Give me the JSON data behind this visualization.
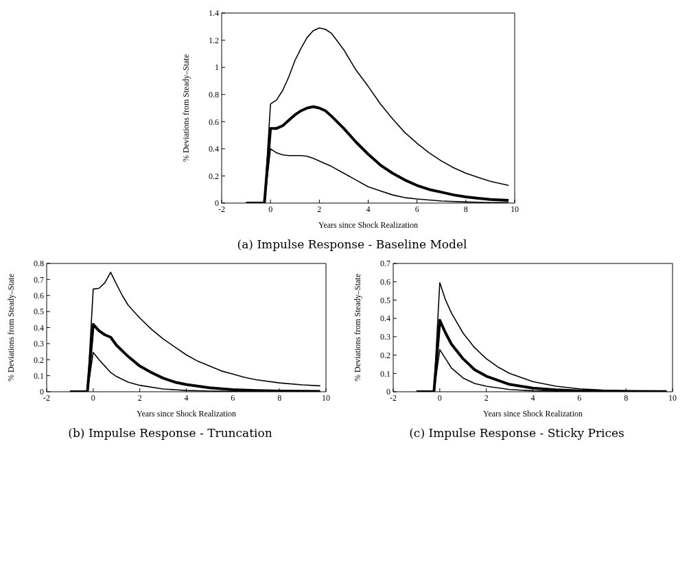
{
  "chart_data": [
    {
      "type": "line",
      "title": "(a) Impulse Response - Baseline Model",
      "xlabel": "Years since Shock Realization",
      "ylabel": "% Deviations from Steady–State",
      "xlim": [
        -2,
        10
      ],
      "xticks": [
        -2,
        0,
        2,
        4,
        6,
        8,
        10
      ],
      "ylim": [
        0,
        1.4
      ],
      "yticks": [
        0,
        0.2,
        0.4,
        0.6,
        0.8,
        1,
        1.2,
        1.4
      ],
      "marker": "none",
      "line_style": "solid",
      "series": [
        {
          "color": "#000000",
          "x": [
            -1,
            -0.25,
            0,
            0.25,
            0.5,
            0.75,
            1,
            1.25,
            1.5,
            1.75,
            2,
            2.25,
            2.5,
            2.75,
            3,
            3.5,
            4,
            4.5,
            5,
            5.5,
            6,
            6.5,
            7,
            7.5,
            8,
            8.5,
            9,
            9.75
          ],
          "values": [
            0,
            0,
            0.73,
            0.76,
            0.83,
            0.93,
            1.05,
            1.14,
            1.22,
            1.27,
            1.29,
            1.28,
            1.25,
            1.19,
            1.13,
            0.98,
            0.86,
            0.73,
            0.62,
            0.52,
            0.44,
            0.37,
            0.31,
            0.26,
            0.22,
            0.19,
            0.16,
            0.13
          ]
        },
        {
          "color": "#000000",
          "x": [
            -1,
            -0.25,
            0,
            0.25,
            0.5,
            0.75,
            1,
            1.25,
            1.5,
            1.75,
            2,
            2.25,
            2.5,
            3,
            3.5,
            4,
            4.5,
            5,
            5.5,
            6,
            6.5,
            7,
            7.5,
            8,
            8.5,
            9,
            9.75
          ],
          "values": [
            0,
            0,
            0.55,
            0.55,
            0.57,
            0.61,
            0.65,
            0.68,
            0.7,
            0.71,
            0.7,
            0.68,
            0.64,
            0.55,
            0.45,
            0.36,
            0.28,
            0.22,
            0.17,
            0.13,
            0.1,
            0.08,
            0.06,
            0.045,
            0.035,
            0.027,
            0.02
          ]
        },
        {
          "color": "#000000",
          "x": [
            -1,
            -0.25,
            0,
            0.25,
            0.5,
            0.75,
            1,
            1.25,
            1.5,
            1.75,
            2,
            2.5,
            3,
            3.5,
            4,
            4.5,
            5,
            5.5,
            6,
            7,
            8,
            9,
            9.75
          ],
          "values": [
            0,
            0,
            0.4,
            0.37,
            0.355,
            0.35,
            0.35,
            0.35,
            0.345,
            0.33,
            0.31,
            0.27,
            0.22,
            0.17,
            0.12,
            0.09,
            0.06,
            0.04,
            0.03,
            0.015,
            0.008,
            0.004,
            0.003
          ]
        }
      ]
    },
    {
      "type": "line",
      "title": "(b) Impulse Response - Truncation",
      "xlabel": "Years since Shock Realization",
      "ylabel": "% Deviations from Steady–State",
      "xlim": [
        -2,
        10
      ],
      "xticks": [
        -2,
        0,
        2,
        4,
        6,
        8,
        10
      ],
      "ylim": [
        0,
        0.8
      ],
      "yticks": [
        0,
        0.1,
        0.2,
        0.3,
        0.4,
        0.5,
        0.6,
        0.7,
        0.8
      ],
      "marker": "none",
      "line_style": "solid",
      "series": [
        {
          "color": "#000000",
          "x": [
            -1,
            -0.25,
            0,
            0.25,
            0.5,
            0.75,
            1,
            1.25,
            1.5,
            2,
            2.5,
            3,
            3.5,
            4,
            4.5,
            5,
            5.5,
            6,
            6.5,
            7,
            8,
            9,
            9.75
          ],
          "values": [
            0,
            0,
            0.64,
            0.645,
            0.68,
            0.745,
            0.67,
            0.6,
            0.54,
            0.46,
            0.39,
            0.33,
            0.28,
            0.23,
            0.19,
            0.16,
            0.13,
            0.11,
            0.09,
            0.075,
            0.055,
            0.043,
            0.037
          ]
        },
        {
          "color": "#000000",
          "x": [
            -1,
            -0.25,
            0,
            0.25,
            0.5,
            0.75,
            1,
            1.5,
            2,
            2.5,
            3,
            3.5,
            4,
            5,
            6,
            7,
            8,
            9.75
          ],
          "values": [
            0,
            0,
            0.42,
            0.38,
            0.355,
            0.34,
            0.29,
            0.22,
            0.16,
            0.12,
            0.085,
            0.06,
            0.045,
            0.025,
            0.013,
            0.007,
            0.004,
            0.002
          ]
        },
        {
          "color": "#000000",
          "x": [
            -1,
            -0.25,
            0,
            0.25,
            0.5,
            0.75,
            1,
            1.5,
            2,
            3,
            4,
            5,
            6,
            9.75
          ],
          "values": [
            0,
            0,
            0.245,
            0.2,
            0.16,
            0.12,
            0.095,
            0.06,
            0.04,
            0.017,
            0.008,
            0.004,
            0.002,
            0.001
          ]
        }
      ]
    },
    {
      "type": "line",
      "title": "(c) Impulse Response - Sticky Prices",
      "xlabel": "Years since Shock Realization",
      "ylabel": "% Deviations from Steady–State",
      "xlim": [
        -2,
        10
      ],
      "xticks": [
        -2,
        0,
        2,
        4,
        6,
        8,
        10
      ],
      "ylim": [
        0,
        0.7
      ],
      "yticks": [
        0,
        0.1,
        0.2,
        0.3,
        0.4,
        0.5,
        0.6,
        0.7
      ],
      "marker": "none",
      "line_style": "solid",
      "series": [
        {
          "color": "#000000",
          "x": [
            -1,
            -0.25,
            0,
            0.25,
            0.5,
            1,
            1.5,
            2,
            2.5,
            3,
            4,
            5,
            6,
            7,
            8,
            9.75
          ],
          "values": [
            0,
            0,
            0.595,
            0.5,
            0.43,
            0.32,
            0.24,
            0.18,
            0.135,
            0.1,
            0.055,
            0.03,
            0.016,
            0.009,
            0.005,
            0.002
          ]
        },
        {
          "color": "#000000",
          "x": [
            -1,
            -0.25,
            0,
            0.25,
            0.5,
            1,
            1.5,
            2,
            3,
            4,
            5,
            6,
            8,
            9.75
          ],
          "values": [
            0,
            0,
            0.39,
            0.32,
            0.26,
            0.18,
            0.12,
            0.085,
            0.04,
            0.02,
            0.01,
            0.005,
            0.002,
            0.001
          ]
        },
        {
          "color": "#000000",
          "x": [
            -1,
            -0.25,
            0,
            0.25,
            0.5,
            1,
            1.5,
            2,
            3,
            4,
            6,
            9.75
          ],
          "values": [
            0,
            0,
            0.23,
            0.18,
            0.13,
            0.075,
            0.045,
            0.03,
            0.012,
            0.005,
            0.001,
            0
          ]
        }
      ]
    }
  ]
}
